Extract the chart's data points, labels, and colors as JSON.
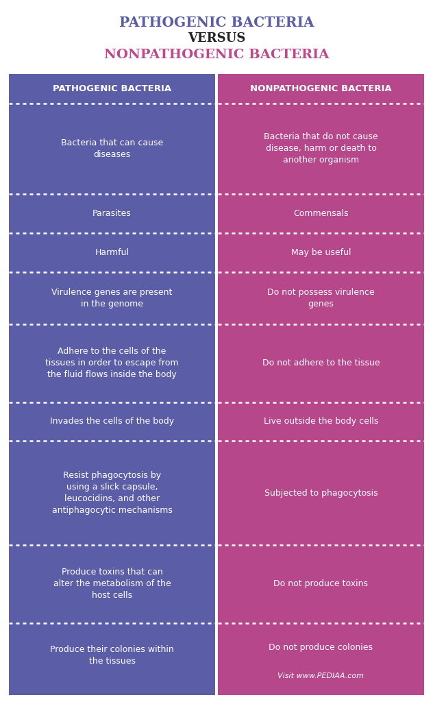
{
  "title_line1": "PATHOGENIC BACTERIA",
  "title_line2": "VERSUS",
  "title_line3": "NONPATHOGENIC BACTERIA",
  "title_color1": "#5b5ea6",
  "title_color2": "#222222",
  "title_color3": "#c2478a",
  "left_header": "PATHOGENIC BACTERIA",
  "right_header": "NONPATHOGENIC BACTERIA",
  "left_color": "#5b5ea6",
  "right_color": "#b5478a",
  "text_color": "#ffffff",
  "left_items": [
    "Bacteria that can cause\ndiseases",
    "Parasites",
    "Harmful",
    "Virulence genes are present\nin the genome",
    "Adhere to the cells of the\ntissues in order to escape from\nthe fluid flows inside the body",
    "Invades the cells of the body",
    "Resist phagocytosis by\nusing a slick capsule,\nleucocidins, and other\nantiphagocytic mechanisms",
    "Produce toxins that can\nalter the metabolism of the\nhost cells",
    "Produce their colonies within\nthe tissues"
  ],
  "right_items": [
    "Bacteria that do not cause\ndisease, harm or death to\nanother organism",
    "Commensals",
    "May be useful",
    "Do not possess virulence\ngenes",
    "Do not adhere to the tissue",
    "Live outside the body cells",
    "Subjected to phagocytosis",
    "Do not produce toxins",
    "Do not produce colonies"
  ],
  "footer_text": "Visit www.PEDIAA.com",
  "bg_color": "#ffffff",
  "row_heights_raw": [
    3.5,
    1.5,
    1.5,
    2.0,
    3.0,
    1.5,
    4.0,
    3.0,
    2.5
  ]
}
